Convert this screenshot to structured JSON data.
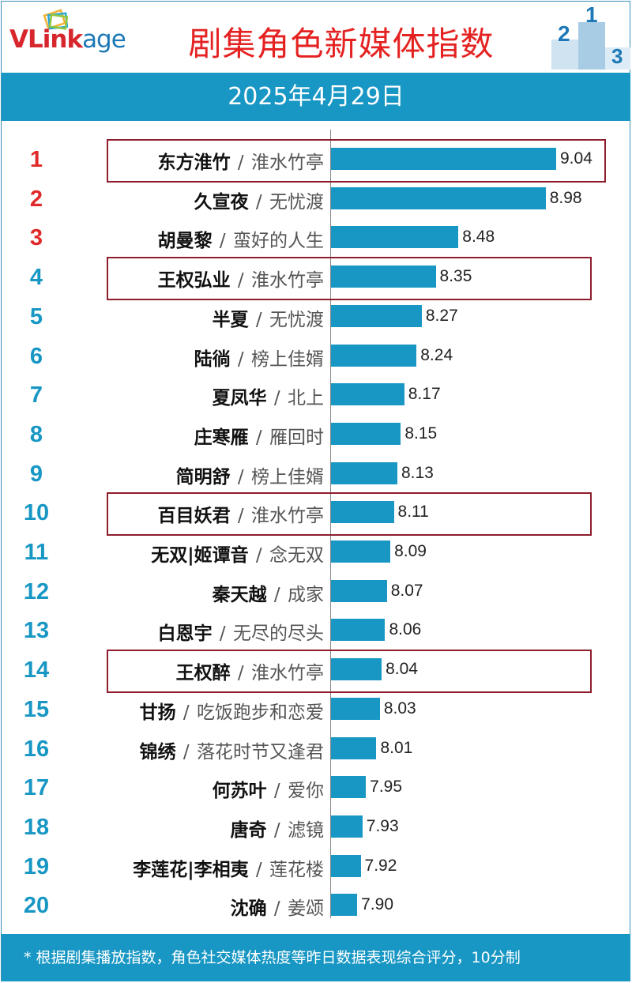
{
  "brand": {
    "logo_part1": "VLink",
    "logo_part2": "age"
  },
  "header": {
    "title": "剧集角色新媒体指数",
    "date": "2025年4月29日"
  },
  "podium_numbers": [
    "2",
    "1",
    "3"
  ],
  "colors": {
    "bar": "#1897c4",
    "rank_top": "#e02a2a",
    "rank_other": "#1897c4",
    "highlight": "#8e1d2c",
    "title": "#e52222"
  },
  "chart_data": {
    "type": "bar",
    "orientation": "horizontal",
    "title": "剧集角色新媒体指数",
    "subtitle": "2025年4月29日",
    "categories": [
      {
        "rank": "1",
        "name": "东方淮竹",
        "show": "淮水竹亭",
        "value": 9.04,
        "label": "9.04",
        "highlight": true
      },
      {
        "rank": "2",
        "name": "久宣夜",
        "show": "无忧渡",
        "value": 8.98,
        "label": "8.98",
        "highlight": false
      },
      {
        "rank": "3",
        "name": "胡曼黎",
        "show": "蛮好的人生",
        "value": 8.48,
        "label": "8.48",
        "highlight": false
      },
      {
        "rank": "4",
        "name": "王权弘业",
        "show": "淮水竹亭",
        "value": 8.35,
        "label": "8.35",
        "highlight": true
      },
      {
        "rank": "5",
        "name": "半夏",
        "show": "无忧渡",
        "value": 8.27,
        "label": "8.27",
        "highlight": false
      },
      {
        "rank": "6",
        "name": "陆徜",
        "show": "榜上佳婿",
        "value": 8.24,
        "label": "8.24",
        "highlight": false
      },
      {
        "rank": "7",
        "name": "夏凤华",
        "show": "北上",
        "value": 8.17,
        "label": "8.17",
        "highlight": false
      },
      {
        "rank": "8",
        "name": "庄寒雁",
        "show": "雁回时",
        "value": 8.15,
        "label": "8.15",
        "highlight": false
      },
      {
        "rank": "9",
        "name": "简明舒",
        "show": "榜上佳婿",
        "value": 8.13,
        "label": "8.13",
        "highlight": false
      },
      {
        "rank": "10",
        "name": "百目妖君",
        "show": "淮水竹亭",
        "value": 8.11,
        "label": "8.11",
        "highlight": true
      },
      {
        "rank": "11",
        "name": "无双|姬谭音",
        "show": "念无双",
        "value": 8.09,
        "label": "8.09",
        "highlight": false
      },
      {
        "rank": "12",
        "name": "秦天越",
        "show": "成家",
        "value": 8.07,
        "label": "8.07",
        "highlight": false
      },
      {
        "rank": "13",
        "name": "白恩宇",
        "show": "无尽的尽头",
        "value": 8.06,
        "label": "8.06",
        "highlight": false
      },
      {
        "rank": "14",
        "name": "王权醉",
        "show": "淮水竹亭",
        "value": 8.04,
        "label": "8.04",
        "highlight": true
      },
      {
        "rank": "15",
        "name": "甘扬",
        "show": "吃饭跑步和恋爱",
        "value": 8.03,
        "label": "8.03",
        "highlight": false
      },
      {
        "rank": "16",
        "name": "锦绣",
        "show": "落花时节又逢君",
        "value": 8.01,
        "label": "8.01",
        "highlight": false
      },
      {
        "rank": "17",
        "name": "何苏叶",
        "show": "爱你",
        "value": 7.95,
        "label": "7.95",
        "highlight": false
      },
      {
        "rank": "18",
        "name": "唐奇",
        "show": "滤镜",
        "value": 7.93,
        "label": "7.93",
        "highlight": false
      },
      {
        "rank": "19",
        "name": "李莲花|李相夷",
        "show": "莲花楼",
        "value": 7.92,
        "label": "7.92",
        "highlight": false
      },
      {
        "rank": "20",
        "name": "沈确",
        "show": "姜颂",
        "value": 7.9,
        "label": "7.90",
        "highlight": false
      }
    ],
    "axis_baseline_value": 7.75,
    "separator": "/"
  },
  "footer": {
    "note": "* 根据剧集播放指数，角色社交媒体热度等昨日数据表现综合评分，10分制"
  }
}
